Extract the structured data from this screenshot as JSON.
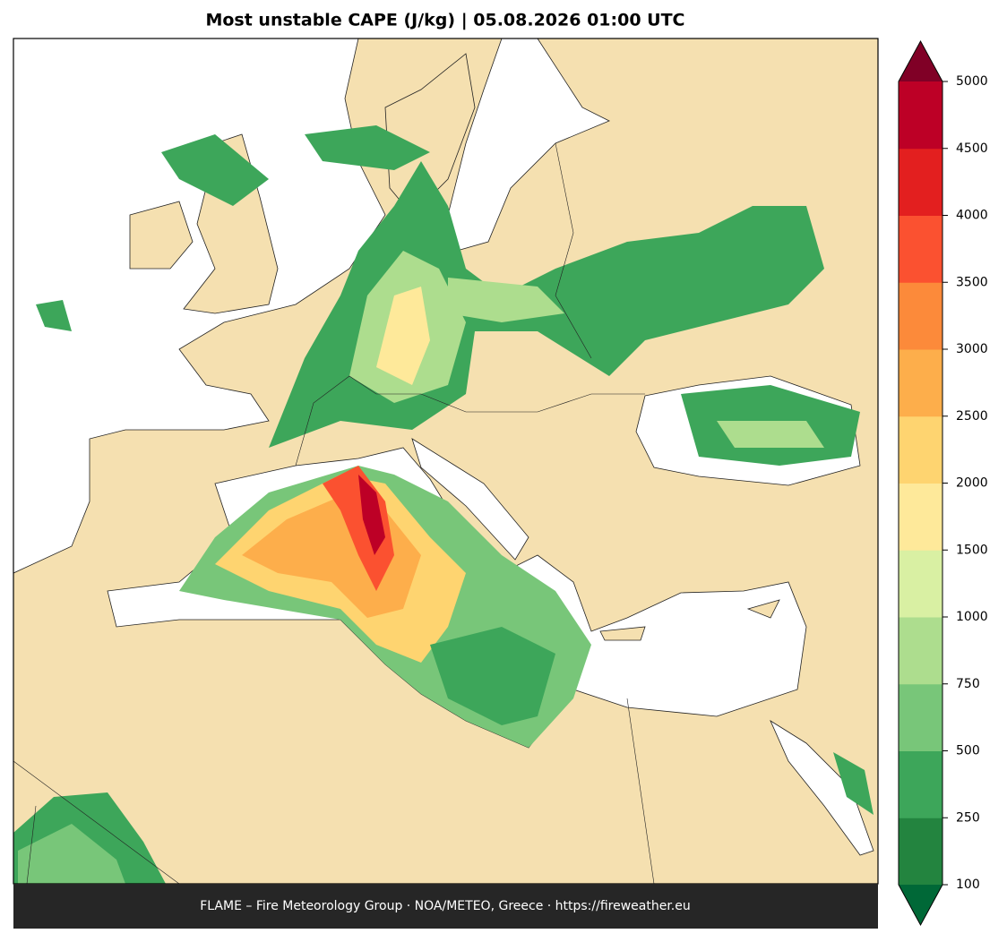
{
  "map": {
    "title": "Most unstable CAPE (J/kg)  |  05.08.2026 01:00 UTC",
    "footer": "FLAME – Fire Meteorology Group · NOA/METEO, Greece · https://fireweather.eu"
  },
  "colorbar": {
    "levels": [
      100,
      250,
      500,
      750,
      1000,
      1500,
      2000,
      2500,
      3000,
      3500,
      4000,
      4500,
      5000
    ],
    "colors": [
      "#23843f",
      "#3da65a",
      "#78c679",
      "#addd8e",
      "#d9f0a3",
      "#fee99a",
      "#fed470",
      "#fdae4b",
      "#fc8a3a",
      "#fb5130",
      "#e31f1f",
      "#bd0026"
    ],
    "under_color": "#006837",
    "over_color": "#800026"
  }
}
